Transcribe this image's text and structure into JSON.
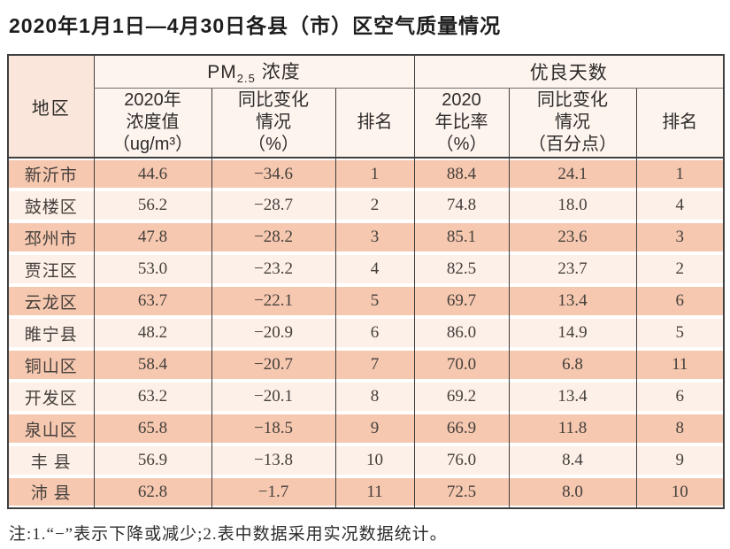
{
  "title": "2020年1月1日—4月30日各县（市）区空气质量情况",
  "table": {
    "header": {
      "region": "地区",
      "pm_group_pre": "PM",
      "pm_group_sub": "2.5",
      "pm_group_post": " 浓度",
      "good_group": "优良天数",
      "pm_value": "2020年\n浓度值\n（ug/m³）",
      "pm_change": "同比变化\n情况\n（%）",
      "pm_rank": "排名",
      "good_ratio": "2020\n年比率\n（%）",
      "good_change": "同比变化\n情况\n（百分点）",
      "good_rank": "排名"
    },
    "rows": [
      {
        "region": "新沂市",
        "pm_value": "44.6",
        "pm_change": "−34.6",
        "pm_rank": "1",
        "good_ratio": "88.4",
        "good_change": "24.1",
        "good_rank": "1"
      },
      {
        "region": "鼓楼区",
        "pm_value": "56.2",
        "pm_change": "−28.7",
        "pm_rank": "2",
        "good_ratio": "74.8",
        "good_change": "18.0",
        "good_rank": "4"
      },
      {
        "region": "邳州市",
        "pm_value": "47.8",
        "pm_change": "−28.2",
        "pm_rank": "3",
        "good_ratio": "85.1",
        "good_change": "23.6",
        "good_rank": "3"
      },
      {
        "region": "贾汪区",
        "pm_value": "53.0",
        "pm_change": "−23.2",
        "pm_rank": "4",
        "good_ratio": "82.5",
        "good_change": "23.7",
        "good_rank": "2"
      },
      {
        "region": "云龙区",
        "pm_value": "63.7",
        "pm_change": "−22.1",
        "pm_rank": "5",
        "good_ratio": "69.7",
        "good_change": "13.4",
        "good_rank": "6"
      },
      {
        "region": "睢宁县",
        "pm_value": "48.2",
        "pm_change": "−20.9",
        "pm_rank": "6",
        "good_ratio": "86.0",
        "good_change": "14.9",
        "good_rank": "5"
      },
      {
        "region": "铜山区",
        "pm_value": "58.4",
        "pm_change": "−20.7",
        "pm_rank": "7",
        "good_ratio": "70.0",
        "good_change": "6.8",
        "good_rank": "11"
      },
      {
        "region": "开发区",
        "pm_value": "63.2",
        "pm_change": "−20.1",
        "pm_rank": "8",
        "good_ratio": "69.2",
        "good_change": "13.4",
        "good_rank": "6"
      },
      {
        "region": "泉山区",
        "pm_value": "65.8",
        "pm_change": "−18.5",
        "pm_rank": "9",
        "good_ratio": "66.9",
        "good_change": "11.8",
        "good_rank": "8"
      },
      {
        "region": "丰 县",
        "pm_value": "56.9",
        "pm_change": "−13.8",
        "pm_rank": "10",
        "good_ratio": "76.0",
        "good_change": "8.4",
        "good_rank": "9"
      },
      {
        "region": "沛 县",
        "pm_value": "62.8",
        "pm_change": "−1.7",
        "pm_rank": "11",
        "good_ratio": "72.5",
        "good_change": "8.0",
        "good_rank": "10"
      }
    ]
  },
  "note": "注:1.“−”表示下降或减少;2.表中数据采用实况数据统计。",
  "colors": {
    "row_dark": "#f6c8b0",
    "row_light": "#fdf0e8",
    "header_bg": "#fdf4ee",
    "region_header_bg": "#fae6da",
    "border": "#3f3f3f"
  }
}
